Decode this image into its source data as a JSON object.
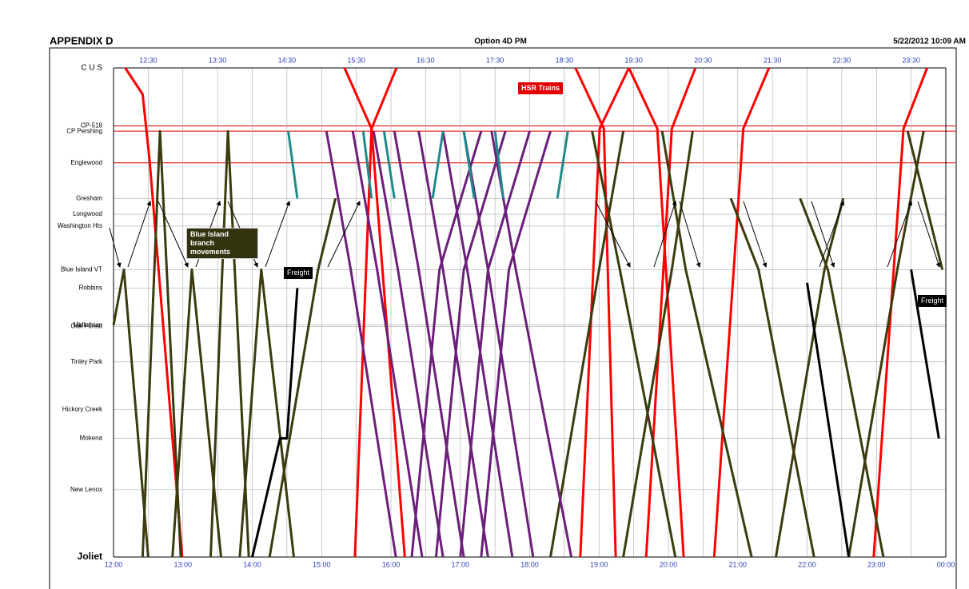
{
  "header": {
    "left": "APPENDIX D",
    "center": "Option 4D PM",
    "right": "5/22/2012 10:09 AM"
  },
  "chart_data": {
    "type": "line",
    "xlim": [
      12,
      24
    ],
    "ylim": [
      0,
      37.1
    ],
    "y_inverted": true,
    "grid": true,
    "xticks": [
      {
        "value": 12,
        "label": "12:00"
      },
      {
        "value": 13,
        "label": "13:00"
      },
      {
        "value": 14,
        "label": "14:00"
      },
      {
        "value": 15,
        "label": "15:00"
      },
      {
        "value": 16,
        "label": "16:00"
      },
      {
        "value": 17,
        "label": "17:00"
      },
      {
        "value": 18,
        "label": "18:00"
      },
      {
        "value": 19,
        "label": "19:00"
      },
      {
        "value": 20,
        "label": "20:00"
      },
      {
        "value": 21,
        "label": "21:00"
      },
      {
        "value": 22,
        "label": "22:00"
      },
      {
        "value": 23,
        "label": "23:00"
      },
      {
        "value": 24,
        "label": "00:00"
      }
    ],
    "x2ticks": [
      {
        "value": 12.5,
        "label": "12:30"
      },
      {
        "value": 13.5,
        "label": "13:30"
      },
      {
        "value": 14.5,
        "label": "14:30"
      },
      {
        "value": 15.5,
        "label": "15:30"
      },
      {
        "value": 16.5,
        "label": "16:30"
      },
      {
        "value": 17.5,
        "label": "17:30"
      },
      {
        "value": 18.5,
        "label": "18:30"
      },
      {
        "value": 19.5,
        "label": "19:30"
      },
      {
        "value": 20.5,
        "label": "20:30"
      },
      {
        "value": 21.5,
        "label": "21:30"
      },
      {
        "value": 22.5,
        "label": "22:30"
      },
      {
        "value": 23.5,
        "label": "23:30"
      }
    ],
    "yticks": [
      {
        "value": 0,
        "label": "C U S"
      },
      {
        "value": 4.4,
        "label": "CP-518"
      },
      {
        "value": 4.8,
        "label": "CP Pershing"
      },
      {
        "value": 7.2,
        "label": "Englewood"
      },
      {
        "value": 9.9,
        "label": "Gresham"
      },
      {
        "value": 11.1,
        "label": "Longwood"
      },
      {
        "value": 12.0,
        "label": "Washington Hts"
      },
      {
        "value": 15.3,
        "label": "Blue Island VT"
      },
      {
        "value": 16.7,
        "label": "Robbins"
      },
      {
        "value": 19.5,
        "label": "Midlothian"
      },
      {
        "value": 19.6,
        "label": "Oak Forest"
      },
      {
        "value": 22.3,
        "label": "Tinley Park"
      },
      {
        "value": 25.9,
        "label": "Hickory Creek"
      },
      {
        "value": 28.1,
        "label": "Mokena"
      },
      {
        "value": 32.0,
        "label": "New Lenox"
      },
      {
        "value": 37.1,
        "label": "Joliet"
      }
    ],
    "reference_lines": {
      "color": "#e00000",
      "values": [
        4.4,
        4.8,
        7.2
      ]
    },
    "annotations": [
      "HSR Trains",
      "Blue Island branch movements",
      "Freight",
      "Freight"
    ],
    "series": [
      {
        "color": "#ff0000",
        "x": [
          12.17,
          12.42,
          12.52,
          12.99
        ],
        "values": [
          0,
          2,
          7,
          37.1
        ]
      },
      {
        "color": "#ff0000",
        "x": [
          15.33,
          15.72,
          16.2
        ],
        "values": [
          0,
          4.6,
          37.1
        ]
      },
      {
        "color": "#ff0000",
        "x": [
          15.48,
          15.72,
          16.08
        ],
        "values": [
          37.1,
          4.6,
          0
        ]
      },
      {
        "color": "#ff0000",
        "x": [
          18.66,
          19.07,
          19.24
        ],
        "values": [
          0,
          4.6,
          37.1
        ]
      },
      {
        "color": "#ff0000",
        "x": [
          18.73,
          19.01,
          19.43
        ],
        "values": [
          37.1,
          4.6,
          0
        ]
      },
      {
        "color": "#ff0000",
        "x": [
          19.43,
          19.84,
          20.22
        ],
        "values": [
          0,
          4.6,
          37.1
        ]
      },
      {
        "color": "#ff0000",
        "x": [
          19.68,
          20.05,
          20.39
        ],
        "values": [
          37.1,
          4.6,
          0
        ]
      },
      {
        "color": "#ff0000",
        "x": [
          20.66,
          21.08,
          21.45
        ],
        "values": [
          37.1,
          4.6,
          0
        ]
      },
      {
        "color": "#ff0000",
        "x": [
          22.96,
          23.39,
          23.73
        ],
        "values": [
          37.1,
          4.6,
          0
        ]
      },
      {
        "color": "#3b3b0e",
        "x": [
          12.42,
          12.67,
          12.97
        ],
        "values": [
          37.1,
          4.8,
          37.1
        ]
      },
      {
        "color": "#3b3b0e",
        "x": [
          13.4,
          13.65,
          13.95
        ],
        "values": [
          37.1,
          4.8,
          37.1
        ]
      },
      {
        "color": "#3b3b0e",
        "x": [
          12.0,
          12.15,
          12.5
        ],
        "values": [
          19.5,
          15.3,
          37.1
        ]
      },
      {
        "color": "#3b3b0e",
        "x": [
          12.85,
          13.13,
          13.55
        ],
        "values": [
          37.1,
          15.3,
          37.1
        ]
      },
      {
        "color": "#3b3b0e",
        "x": [
          13.82,
          14.13,
          14.6
        ],
        "values": [
          37.1,
          15.3,
          37.1
        ]
      },
      {
        "color": "#3b3b0e",
        "x": [
          14.25,
          14.95,
          15.2
        ],
        "values": [
          37.1,
          15.3,
          9.9
        ]
      },
      {
        "color": "#3b3b0e",
        "x": [
          18.3,
          19.0,
          19.35
        ],
        "values": [
          37.1,
          15.3,
          4.8
        ]
      },
      {
        "color": "#3b3b0e",
        "x": [
          19.35,
          20.05,
          20.35
        ],
        "values": [
          37.1,
          15.3,
          4.8
        ]
      },
      {
        "color": "#3b3b0e",
        "x": [
          21.55,
          22.25,
          22.52
        ],
        "values": [
          37.1,
          15.3,
          9.9
        ]
      },
      {
        "color": "#3b3b0e",
        "x": [
          22.6,
          23.3,
          23.68
        ],
        "values": [
          37.1,
          15.3,
          4.8
        ]
      },
      {
        "color": "#3b3b0e",
        "x": [
          18.9,
          19.3,
          20.1
        ],
        "values": [
          4.8,
          15.3,
          37.1
        ]
      },
      {
        "color": "#3b3b0e",
        "x": [
          19.91,
          20.25,
          21.2
        ],
        "values": [
          4.8,
          15.3,
          37.1
        ]
      },
      {
        "color": "#3b3b0e",
        "x": [
          20.9,
          21.3,
          22.1
        ],
        "values": [
          9.9,
          15.3,
          37.1
        ]
      },
      {
        "color": "#3b3b0e",
        "x": [
          21.9,
          22.3,
          23.1
        ],
        "values": [
          9.9,
          15.3,
          37.1
        ]
      },
      {
        "color": "#3b3b0e",
        "x": [
          23.45,
          23.95
        ],
        "values": [
          4.8,
          15.3
        ]
      },
      {
        "color": "#6b1f7a",
        "x": [
          15.07,
          15.42,
          16.07
        ],
        "values": [
          4.8,
          15.3,
          37.1
        ]
      },
      {
        "color": "#6b1f7a",
        "x": [
          15.45,
          15.8,
          16.45
        ],
        "values": [
          4.8,
          15.3,
          37.1
        ]
      },
      {
        "color": "#6b1f7a",
        "x": [
          15.75,
          16.1,
          16.75
        ],
        "values": [
          4.8,
          15.3,
          37.1
        ]
      },
      {
        "color": "#6b1f7a",
        "x": [
          16.05,
          16.4,
          17.05
        ],
        "values": [
          4.8,
          15.3,
          37.1
        ]
      },
      {
        "color": "#6b1f7a",
        "x": [
          16.4,
          16.75,
          17.4
        ],
        "values": [
          4.8,
          15.3,
          37.1
        ]
      },
      {
        "color": "#6b1f7a",
        "x": [
          16.75,
          17.1,
          17.75
        ],
        "values": [
          4.8,
          15.3,
          37.1
        ]
      },
      {
        "color": "#6b1f7a",
        "x": [
          17.05,
          17.4,
          18.05
        ],
        "values": [
          4.8,
          15.3,
          37.1
        ]
      },
      {
        "color": "#6b1f7a",
        "x": [
          17.45,
          17.8,
          18.6
        ],
        "values": [
          4.8,
          15.3,
          37.1
        ]
      },
      {
        "color": "#6b1f7a",
        "x": [
          16.3,
          16.7,
          17.3
        ],
        "values": [
          37.1,
          15.3,
          4.8
        ]
      },
      {
        "color": "#6b1f7a",
        "x": [
          16.65,
          17.05,
          17.65
        ],
        "values": [
          37.1,
          15.3,
          4.8
        ]
      },
      {
        "color": "#6b1f7a",
        "x": [
          17.0,
          17.4,
          18.0
        ],
        "values": [
          37.1,
          15.3,
          4.8
        ]
      },
      {
        "color": "#6b1f7a",
        "x": [
          17.3,
          17.7,
          18.3
        ],
        "values": [
          37.1,
          15.3,
          4.8
        ]
      },
      {
        "color": "#1f8a8a",
        "x": [
          14.52,
          14.65
        ],
        "values": [
          4.8,
          9.9
        ]
      },
      {
        "color": "#1f8a8a",
        "x": [
          15.6,
          15.72
        ],
        "values": [
          4.8,
          9.9
        ]
      },
      {
        "color": "#1f8a8a",
        "x": [
          15.9,
          16.05
        ],
        "values": [
          4.8,
          9.9
        ]
      },
      {
        "color": "#1f8a8a",
        "x": [
          16.6,
          16.75
        ],
        "values": [
          9.9,
          4.8
        ]
      },
      {
        "color": "#1f8a8a",
        "x": [
          17.05,
          17.2
        ],
        "values": [
          4.8,
          9.9
        ]
      },
      {
        "color": "#1f8a8a",
        "x": [
          17.5,
          17.62
        ],
        "values": [
          4.8,
          9.9
        ]
      },
      {
        "color": "#1f8a8a",
        "x": [
          18.4,
          18.55
        ],
        "values": [
          9.9,
          4.8
        ]
      },
      {
        "color": "#000000",
        "x": [
          14.0,
          14.4,
          14.5,
          14.65
        ],
        "values": [
          37.1,
          28.1,
          28.1,
          16.7
        ]
      },
      {
        "color": "#000000",
        "x": [
          22.0,
          22.6
        ],
        "values": [
          16.3,
          37.1
        ]
      },
      {
        "color": "#000000",
        "x": [
          23.5,
          23.9
        ],
        "values": [
          15.3,
          28.1
        ]
      }
    ]
  }
}
